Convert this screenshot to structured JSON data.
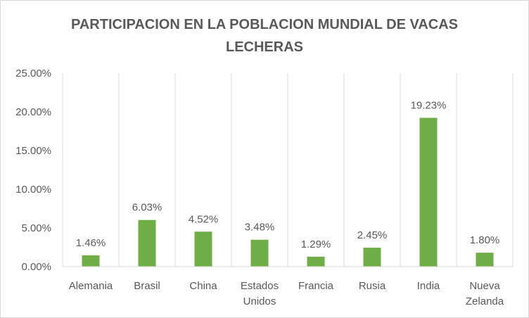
{
  "chart_data": {
    "type": "bar",
    "title_lines": [
      "PARTICIPACION EN LA POBLACION MUNDIAL DE VACAS",
      "LECHERAS"
    ],
    "categories": [
      [
        "Alemania"
      ],
      [
        "Brasil"
      ],
      [
        "China"
      ],
      [
        "Estados",
        "Unidos"
      ],
      [
        "Francia"
      ],
      [
        "Rusia"
      ],
      [
        "India"
      ],
      [
        "Nueva",
        "Zelanda"
      ]
    ],
    "values": [
      1.46,
      6.03,
      4.52,
      3.48,
      1.29,
      2.45,
      19.23,
      1.8
    ],
    "data_labels": [
      "1.46%",
      "6.03%",
      "4.52%",
      "3.48%",
      "1.29%",
      "2.45%",
      "19.23%",
      "1.80%"
    ],
    "y_ticks": [
      0,
      5,
      10,
      15,
      20,
      25
    ],
    "y_tick_labels": [
      "0.00%",
      "5.00%",
      "10.00%",
      "15.00%",
      "20.00%",
      "25.00%"
    ],
    "ylim": [
      0,
      25
    ],
    "grid": "vertical",
    "bar_color": "#70ad47"
  }
}
